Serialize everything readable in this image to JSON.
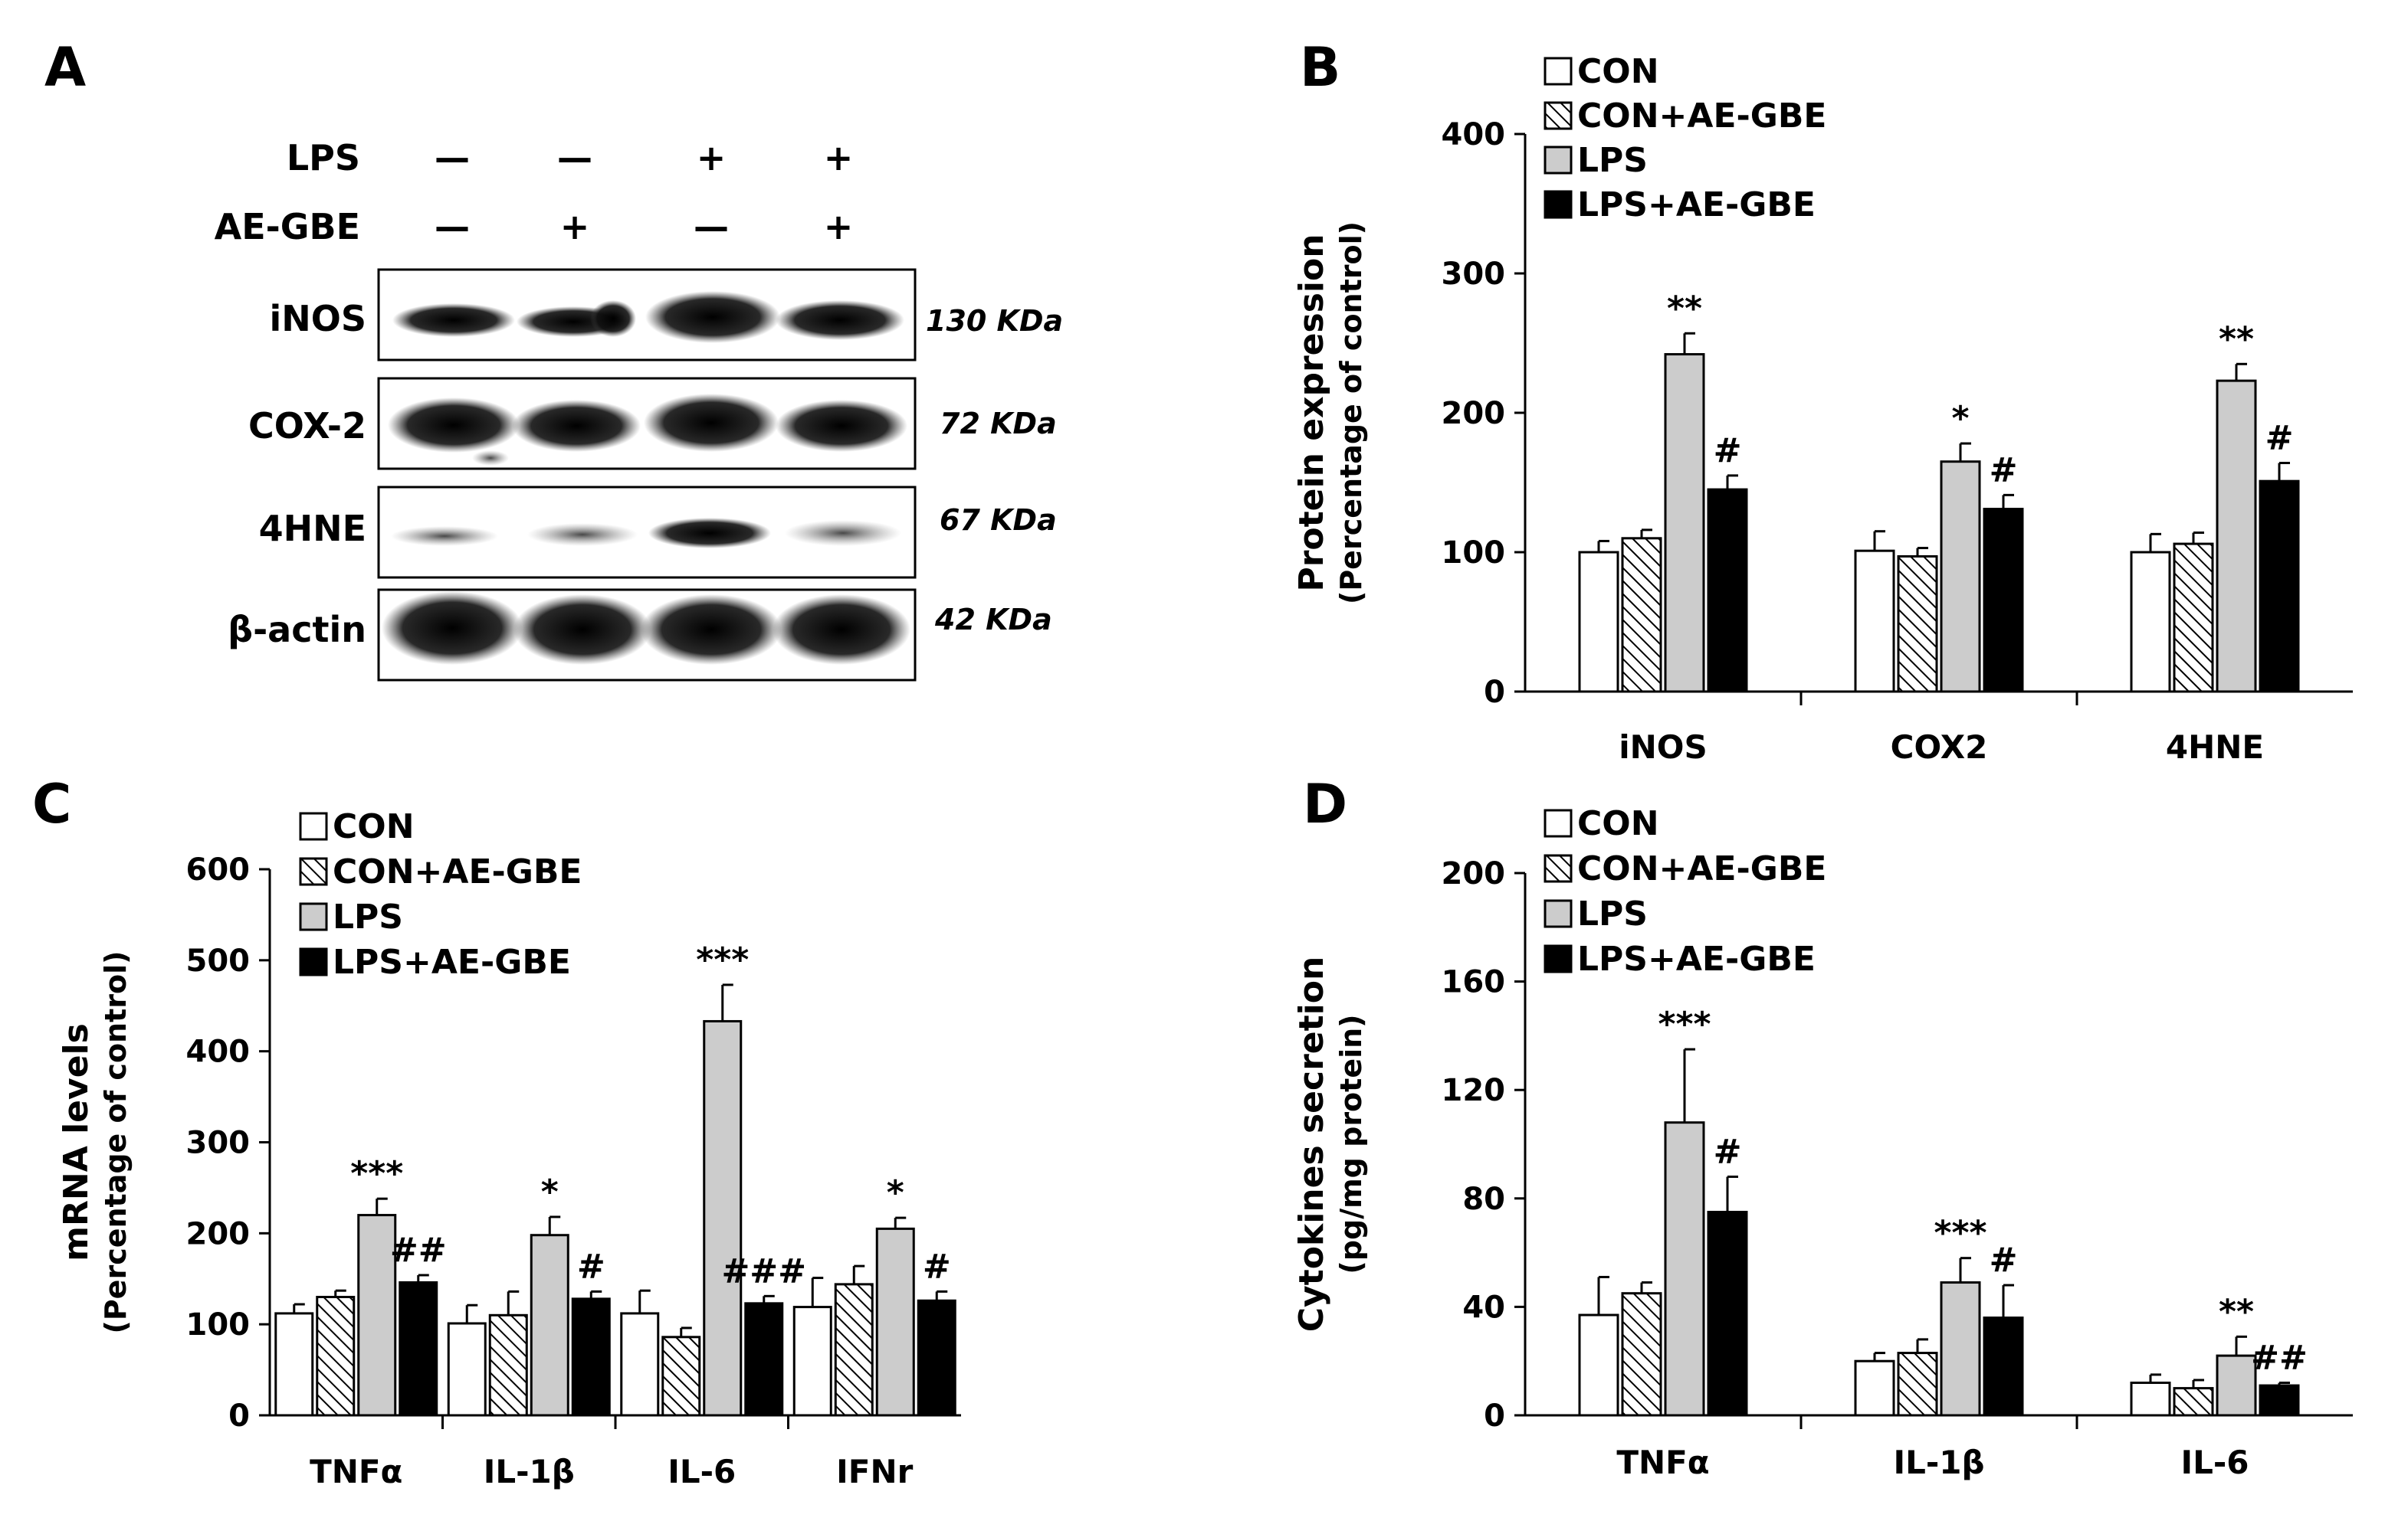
{
  "panels": {
    "A": {
      "letter": "A",
      "treatments": [
        {
          "name": "LPS",
          "lanes": [
            "—",
            "—",
            "+",
            "+"
          ]
        },
        {
          "name": "AE-GBE",
          "lanes": [
            "—",
            "+",
            "—",
            "+"
          ]
        }
      ],
      "blots": [
        {
          "label": "iNOS",
          "mw": "130 KDa"
        },
        {
          "label": "COX-2",
          "mw": "72 KDa"
        },
        {
          "label": "4HNE",
          "mw": "67 KDa"
        },
        {
          "label": "β-actin",
          "mw": "42 KDa"
        }
      ]
    },
    "B": {
      "letter": "B"
    },
    "C": {
      "letter": "C"
    },
    "D": {
      "letter": "D"
    }
  },
  "colors": {
    "CON": "#ffffff",
    "CON+AE-GBE": "hatched",
    "LPS": "#cccccc",
    "LPS+AE-GBE": "#000000"
  },
  "chart_data": [
    {
      "panel": "B",
      "type": "bar",
      "categories": [
        "iNOS",
        "COX2",
        "4HNE"
      ],
      "ylabel": "Protein expression",
      "ylabel2": "(Percentage of control)",
      "ylim": [
        0,
        400
      ],
      "yticks": [
        0,
        100,
        200,
        300,
        400
      ],
      "legend": "top-left",
      "series": [
        {
          "name": "CON",
          "values": [
            100,
            101,
            100
          ],
          "errors": [
            8,
            14,
            13
          ],
          "marks": [
            "",
            "",
            ""
          ]
        },
        {
          "name": "CON+AE-GBE",
          "values": [
            110,
            97,
            106
          ],
          "errors": [
            6,
            6,
            8
          ],
          "marks": [
            "",
            "",
            ""
          ]
        },
        {
          "name": "LPS",
          "values": [
            242,
            165,
            223
          ],
          "errors": [
            15,
            13,
            12
          ],
          "marks": [
            "**",
            "*",
            "**"
          ]
        },
        {
          "name": "LPS+AE-GBE",
          "values": [
            145,
            131,
            151
          ],
          "errors": [
            10,
            10,
            13
          ],
          "marks": [
            "#",
            "#",
            "#"
          ]
        }
      ]
    },
    {
      "panel": "C",
      "type": "bar",
      "categories": [
        "TNFα",
        "IL-1β",
        "IL-6",
        "IFNr"
      ],
      "ylabel": "mRNA levels",
      "ylabel2": "(Percentage of control)",
      "ylim": [
        0,
        600
      ],
      "yticks": [
        0,
        100,
        200,
        300,
        400,
        500,
        600
      ],
      "legend": "top-left",
      "series": [
        {
          "name": "CON",
          "values": [
            112,
            101,
            112,
            119
          ],
          "errors": [
            10,
            20,
            25,
            32
          ],
          "marks": [
            "",
            "",
            "",
            ""
          ]
        },
        {
          "name": "CON+AE-GBE",
          "values": [
            130,
            110,
            86,
            144
          ],
          "errors": [
            7,
            26,
            10,
            20
          ],
          "marks": [
            "",
            "",
            "",
            ""
          ]
        },
        {
          "name": "LPS",
          "values": [
            220,
            198,
            433,
            205
          ],
          "errors": [
            18,
            20,
            40,
            12
          ],
          "marks": [
            "***",
            "*",
            "***",
            "*"
          ]
        },
        {
          "name": "LPS+AE-GBE",
          "values": [
            146,
            128,
            123,
            126
          ],
          "errors": [
            8,
            8,
            8,
            10
          ],
          "marks": [
            "##",
            "#",
            "###",
            "#"
          ]
        }
      ]
    },
    {
      "panel": "D",
      "type": "bar",
      "categories": [
        "TNFα",
        "IL-1β",
        "IL-6"
      ],
      "ylabel": "Cytokines secretion",
      "ylabel2": "(pg/mg protein)",
      "ylim": [
        0,
        200
      ],
      "yticks": [
        0,
        40,
        80,
        120,
        160,
        200
      ],
      "legend": "top-left",
      "series": [
        {
          "name": "CON",
          "values": [
            37,
            20,
            12
          ],
          "errors": [
            14,
            3,
            3
          ],
          "marks": [
            "",
            "",
            ""
          ]
        },
        {
          "name": "CON+AE-GBE",
          "values": [
            45,
            23,
            10
          ],
          "errors": [
            4,
            5,
            3
          ],
          "marks": [
            "",
            "",
            ""
          ]
        },
        {
          "name": "LPS",
          "values": [
            108,
            49,
            22
          ],
          "errors": [
            27,
            9,
            7
          ],
          "marks": [
            "***",
            "***",
            "**"
          ]
        },
        {
          "name": "LPS+AE-GBE",
          "values": [
            75,
            36,
            11
          ],
          "errors": [
            13,
            12,
            1
          ],
          "marks": [
            "#",
            "#",
            "##"
          ]
        }
      ]
    }
  ]
}
